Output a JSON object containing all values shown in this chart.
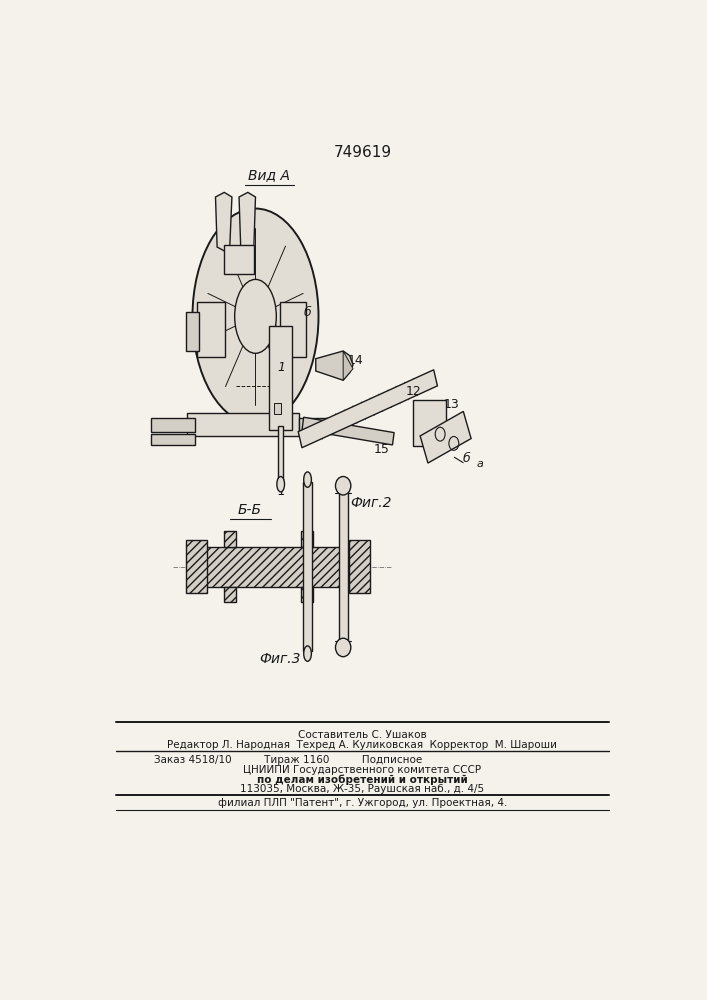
{
  "patent_number": "749619",
  "title_view_a": "Вид А",
  "fig2_label": "Фиг.2",
  "fig3_label": "Фиг.3",
  "section_label": "Б-Б",
  "bg_color": "#f5f2ec",
  "line_color": "#1a1a1a",
  "footer_lines": [
    "Составитель С. Ушаков",
    "Редактор Л. Народная  Техред А. Куликовская  Корректор  М. Шароши",
    "Заказ 4518/10          Тираж 1160          Подписное",
    "ЦНИИПИ Государственного комитета СССР",
    "по делам изобретений и открытий",
    "113035, Москва, Ж-35, Раушская наб., д. 4/5",
    "филиал ПЛП \"Патент\", г. Ужгород, ул. Проектная, 4."
  ]
}
